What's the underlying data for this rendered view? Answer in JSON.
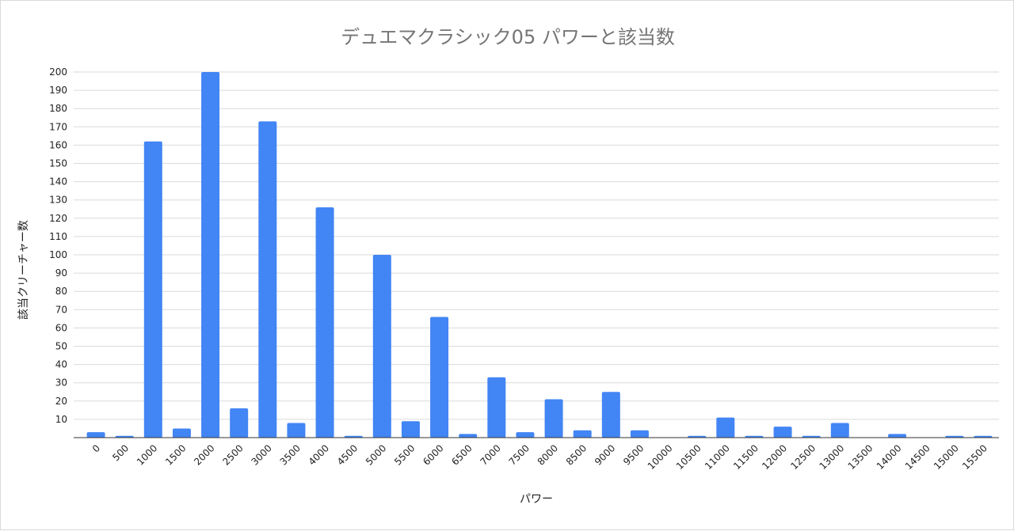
{
  "chart_data": {
    "type": "bar",
    "title": "デュエマクラシック05 パワーと該当数",
    "xlabel": "パワー",
    "ylabel": "該当クリーチャー数",
    "categories": [
      "0",
      "500",
      "1000",
      "1500",
      "2000",
      "2500",
      "3000",
      "3500",
      "4000",
      "4500",
      "5000",
      "5500",
      "6000",
      "6500",
      "7000",
      "7500",
      "8000",
      "8500",
      "9000",
      "9500",
      "10000",
      "10500",
      "11000",
      "11500",
      "12000",
      "12500",
      "13000",
      "13500",
      "14000",
      "14500",
      "15000",
      "15500"
    ],
    "values": [
      3,
      1,
      162,
      5,
      200,
      16,
      173,
      8,
      126,
      1,
      100,
      9,
      66,
      2,
      33,
      3,
      21,
      4,
      25,
      4,
      0,
      1,
      11,
      1,
      6,
      1,
      8,
      0,
      2,
      0,
      1,
      1
    ],
    "ylim": [
      0,
      200
    ],
    "yticks": [
      10,
      20,
      30,
      40,
      50,
      60,
      70,
      80,
      90,
      100,
      110,
      120,
      130,
      140,
      150,
      160,
      170,
      180,
      190,
      200
    ],
    "grid": true,
    "legend": "none",
    "bar_color": "#4285f4"
  }
}
